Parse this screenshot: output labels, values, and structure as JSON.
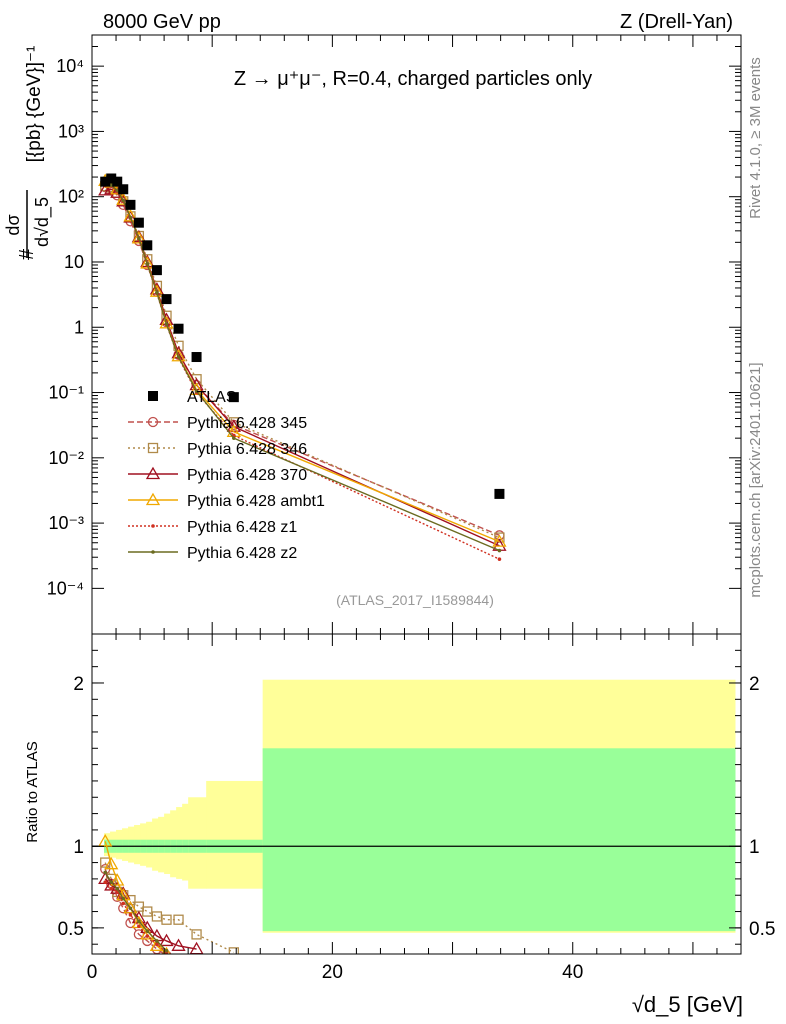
{
  "header": {
    "left": "8000 GeV pp",
    "right": "Z (Drell-Yan)"
  },
  "side_labels": {
    "rivet": "Rivet 4.1.0, ≥ 3M events",
    "mcplots": "mcplots.cern.ch [arXiv:2401.10621]"
  },
  "plot_title": "Z → μ⁺μ⁻, R=0.4, charged particles only",
  "analysis_id": "(ATLAS_2017_I1589844)",
  "colors": {
    "band_inner": "#99ff99",
    "band_outer": "#ffff99",
    "data": "#000000"
  },
  "chart_data": [
    {
      "type": "scatter",
      "name": "main",
      "yscale": "log",
      "xlim": [
        0,
        54
      ],
      "ylim": [
        2e-05,
        30000
      ],
      "xlabel": "√d_5 [GeV]",
      "ylabel": "dσ/d√d_5 [{pb} {GeV}⁻¹]",
      "y_ticks": [
        {
          "v": 0.0001,
          "label": "10⁻⁴"
        },
        {
          "v": 0.001,
          "label": "10⁻³"
        },
        {
          "v": 0.01,
          "label": "10⁻²"
        },
        {
          "v": 0.1,
          "label": "10⁻¹"
        },
        {
          "v": 1,
          "label": "1"
        },
        {
          "v": 10,
          "label": "10"
        },
        {
          "v": 100,
          "label": "10²"
        },
        {
          "v": 1000,
          "label": "10³"
        },
        {
          "v": 10000,
          "label": "10⁴"
        }
      ],
      "series": [
        {
          "name": "ATLAS",
          "color": "#000000",
          "marker": "square",
          "x": [
            1.1,
            1.6,
            2.1,
            2.6,
            3.2,
            3.9,
            4.6,
            5.4,
            6.2,
            7.2,
            8.7,
            11.8,
            33.9
          ],
          "y": [
            170,
            190,
            170,
            130,
            75,
            40,
            18,
            7.5,
            2.7,
            0.95,
            0.35,
            0.085,
            0.0028
          ]
        },
        {
          "name": "Pythia 6.428 345",
          "color": "#c0504d",
          "marker": "circle",
          "dash": "6,3",
          "x": [
            1.1,
            1.6,
            2.1,
            2.6,
            3.2,
            3.9,
            4.6,
            5.4,
            6.2,
            7.2,
            8.7,
            11.8,
            33.9
          ],
          "y": [
            140,
            130,
            105,
            75,
            42,
            21,
            9,
            3.5,
            1.2,
            0.38,
            0.13,
            0.032,
            0.00065
          ]
        },
        {
          "name": "Pythia 6.428 346",
          "color": "#b08a4a",
          "marker": "square-open",
          "dash": "2,3",
          "x": [
            1.1,
            1.6,
            2.1,
            2.6,
            3.2,
            3.9,
            4.6,
            5.4,
            6.2,
            7.2,
            8.7,
            11.8,
            33.9
          ],
          "y": [
            145,
            140,
            115,
            85,
            50,
            25,
            11,
            4.3,
            1.5,
            0.52,
            0.16,
            0.035,
            0.0006
          ]
        },
        {
          "name": "Pythia 6.428 370",
          "color": "#a01020",
          "marker": "triangle",
          "dash": "",
          "x": [
            1.1,
            1.6,
            2.1,
            2.6,
            3.2,
            3.9,
            4.6,
            5.4,
            6.2,
            7.2,
            8.7,
            11.8,
            33.9
          ],
          "y": [
            125,
            130,
            115,
            85,
            48,
            24,
            10,
            3.8,
            1.3,
            0.4,
            0.13,
            0.03,
            0.00045
          ]
        },
        {
          "name": "Pythia 6.428 ambt1",
          "color": "#f0a800",
          "marker": "triangle",
          "dash": "",
          "x": [
            1.1,
            1.6,
            2.1,
            2.6,
            3.2,
            3.9,
            4.6,
            5.4,
            6.2,
            7.2,
            8.7,
            11.8,
            33.9
          ],
          "y": [
            175,
            165,
            130,
            90,
            50,
            23,
            9.5,
            3.5,
            1.15,
            0.36,
            0.11,
            0.025,
            0.00052
          ]
        },
        {
          "name": "Pythia 6.428 z1",
          "color": "#d03020",
          "marker": "dot",
          "dash": "2,2",
          "x": [
            1.1,
            1.6,
            2.1,
            2.6,
            3.2,
            3.9,
            4.6,
            5.4,
            6.2,
            7.2,
            8.7,
            11.8,
            33.9
          ],
          "y": [
            150,
            145,
            120,
            85,
            47,
            22,
            9,
            3.3,
            1.1,
            0.34,
            0.1,
            0.022,
            0.00028
          ]
        },
        {
          "name": "Pythia 6.428 z2",
          "color": "#6b6b20",
          "marker": "dot",
          "dash": "",
          "x": [
            1.1,
            1.6,
            2.1,
            2.6,
            3.2,
            3.9,
            4.6,
            5.4,
            6.2,
            7.2,
            8.7,
            11.8,
            33.9
          ],
          "y": [
            160,
            150,
            125,
            88,
            48,
            23,
            9.3,
            3.4,
            1.12,
            0.35,
            0.105,
            0.02,
            0.00038
          ]
        }
      ]
    },
    {
      "type": "scatter",
      "name": "ratio",
      "ylabel": "Ratio to ATLAS",
      "xlabel": "√d_5 [GeV]",
      "xlim": [
        0,
        54
      ],
      "ylim": [
        0.34,
        2.3
      ],
      "y_ticks": [
        {
          "v": 0.5,
          "label": "0.5"
        },
        {
          "v": 1,
          "label": "1"
        },
        {
          "v": 2,
          "label": "2"
        }
      ],
      "x_ticks": [
        {
          "v": 0,
          "label": "0"
        },
        {
          "v": 20,
          "label": "20"
        },
        {
          "v": 40,
          "label": "40"
        }
      ],
      "bands": {
        "edges": [
          1,
          1.5,
          2,
          2.5,
          3,
          3.5,
          4,
          4.5,
          5,
          5.5,
          6,
          6.5,
          7,
          7.5,
          8,
          9.5,
          14.2,
          53.5
        ],
        "inner_lo": [
          0.96,
          0.96,
          0.96,
          0.96,
          0.96,
          0.96,
          0.96,
          0.96,
          0.96,
          0.96,
          0.96,
          0.96,
          0.96,
          0.96,
          0.96,
          0.96,
          0.48
        ],
        "inner_hi": [
          1.04,
          1.04,
          1.04,
          1.04,
          1.04,
          1.04,
          1.04,
          1.04,
          1.04,
          1.04,
          1.04,
          1.04,
          1.04,
          1.04,
          1.04,
          1.04,
          1.6
        ],
        "outer_lo": [
          0.94,
          0.93,
          0.92,
          0.91,
          0.9,
          0.89,
          0.88,
          0.87,
          0.85,
          0.84,
          0.83,
          0.81,
          0.8,
          0.79,
          0.74,
          0.74,
          0.47
        ],
        "outer_hi": [
          1.08,
          1.09,
          1.1,
          1.11,
          1.12,
          1.13,
          1.14,
          1.15,
          1.17,
          1.18,
          1.2,
          1.22,
          1.24,
          1.26,
          1.3,
          1.4,
          2.02
        ]
      },
      "series": [
        {
          "name": "Pythia 6.428 345",
          "color": "#c0504d",
          "marker": "circle",
          "dash": "6,3",
          "x": [
            1.1,
            1.6,
            2.1,
            2.6,
            3.2,
            3.9,
            4.6,
            5.4,
            6.2
          ],
          "y": [
            0.86,
            0.77,
            0.69,
            0.62,
            0.53,
            0.46,
            0.42,
            0.37,
            0.33
          ]
        },
        {
          "name": "Pythia 6.428 346",
          "color": "#b08a4a",
          "marker": "square-open",
          "dash": "2,3",
          "x": [
            1.1,
            1.6,
            2.1,
            2.6,
            3.2,
            3.9,
            4.6,
            5.4,
            6.2,
            7.2,
            8.7,
            11.8
          ],
          "y": [
            0.9,
            0.8,
            0.72,
            0.7,
            0.67,
            0.63,
            0.6,
            0.57,
            0.55,
            0.55,
            0.46,
            0.35
          ]
        },
        {
          "name": "Pythia 6.428 370",
          "color": "#a01020",
          "marker": "triangle",
          "dash": "",
          "x": [
            1.1,
            1.6,
            2.1,
            2.6,
            3.2,
            3.9,
            4.6,
            5.4,
            6.2,
            7.2,
            8.7
          ],
          "y": [
            0.8,
            0.76,
            0.74,
            0.71,
            0.62,
            0.56,
            0.5,
            0.45,
            0.42,
            0.39,
            0.37
          ]
        },
        {
          "name": "Pythia 6.428 ambt1",
          "color": "#f0a800",
          "marker": "triangle",
          "dash": "",
          "x": [
            1.1,
            1.6,
            2.1,
            2.6,
            3.2,
            3.9,
            4.6,
            5.4,
            6.2
          ],
          "y": [
            1.03,
            0.89,
            0.79,
            0.7,
            0.62,
            0.53,
            0.46,
            0.39,
            0.34
          ]
        },
        {
          "name": "Pythia 6.428 z1",
          "color": "#d03020",
          "marker": "dot",
          "dash": "2,2",
          "x": [
            1.1,
            1.6,
            2.1,
            2.6,
            3.2,
            3.9,
            4.6,
            5.4,
            6.2
          ],
          "y": [
            0.78,
            0.74,
            0.72,
            0.65,
            0.58,
            0.51,
            0.45,
            0.4,
            0.35
          ]
        },
        {
          "name": "Pythia 6.428 z2",
          "color": "#6b6b20",
          "marker": "dot",
          "dash": "",
          "x": [
            1.1,
            1.6,
            2.1,
            2.6,
            3.2,
            3.9,
            4.6,
            5.4,
            6.2
          ],
          "y": [
            0.84,
            0.78,
            0.74,
            0.68,
            0.62,
            0.54,
            0.48,
            0.42,
            0.36
          ]
        }
      ]
    }
  ]
}
